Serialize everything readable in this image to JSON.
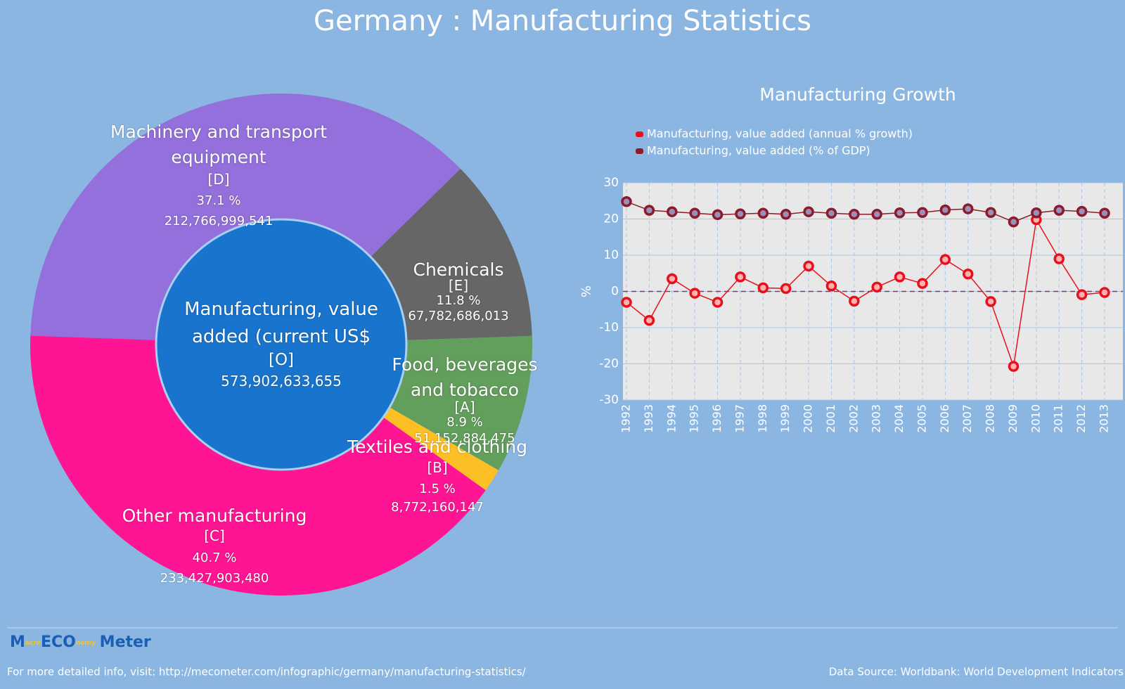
{
  "title": "Germany : Manufacturing Statistics",
  "chart_data": [
    {
      "type": "donut",
      "categories": [
        "Machinery and transport equipment",
        "Chemicals",
        "Food, beverages and tobacco",
        "Textiles and clothing",
        "Other manufacturing"
      ],
      "codes": [
        "[D]",
        "[E]",
        "[A]",
        "[B]",
        "[C]"
      ],
      "values": [
        37.1,
        11.8,
        8.9,
        1.5,
        40.7
      ],
      "value_labels": [
        "37.1 %",
        "11.8 %",
        "8.9 %",
        "1.5 %",
        "40.7 %"
      ],
      "amounts": [
        212766999541,
        67782686013,
        51152884475,
        8772160147,
        233427903480
      ],
      "amount_labels": [
        "212,766,999,541",
        "67,782,686,013",
        "51,152,884,475",
        "8,772,160,147",
        "233,427,903,480"
      ],
      "colors": [
        "#9370db",
        "#666666",
        "#629e5c",
        "#fcbf24",
        "#ff1493"
      ],
      "center": {
        "label": "Manufacturing, value added (current US$",
        "code": "[O]",
        "amount": 573902633655,
        "amount_label": "573,902,633,655",
        "color": "#1874cd"
      }
    },
    {
      "type": "line",
      "title": "Manufacturing Growth",
      "y_label": "%",
      "categories": [
        "1992",
        "1993",
        "1994",
        "1995",
        "1996",
        "1997",
        "1998",
        "1999",
        "2000",
        "2001",
        "2002",
        "2003",
        "2004",
        "2005",
        "2006",
        "2007",
        "2008",
        "2009",
        "2010",
        "2011",
        "2012",
        "2013"
      ],
      "series": [
        {
          "name": "Manufacturing, value added (annual % growth)",
          "color": "#e8101c",
          "values": [
            -3,
            -8,
            3.5,
            -0.5,
            -3,
            4,
            1,
            0.8,
            7,
            1.5,
            -2.7,
            1.2,
            4,
            2.2,
            8.8,
            4.8,
            -2.8,
            -20.7,
            19.8,
            9,
            -0.9,
            -0.3
          ]
        },
        {
          "name": "Manufacturing, value added (% of GDP)",
          "color": "#8b1a2a",
          "values": [
            24.8,
            22.4,
            22,
            21.6,
            21.2,
            21.4,
            21.6,
            21.3,
            22,
            21.6,
            21.3,
            21.3,
            21.7,
            21.8,
            22.5,
            22.8,
            21.8,
            19.2,
            21.7,
            22.4,
            22.1,
            21.6
          ]
        }
      ],
      "ylim": [
        -30,
        30
      ],
      "yticks": [
        -30,
        -20,
        -10,
        0,
        10,
        20,
        30
      ],
      "grid": true
    }
  ],
  "footer": {
    "logo": [
      "M",
      "acro",
      "ECO",
      "nomy",
      "Meter"
    ],
    "link": "For more detailed info, visit: http://mecometer.com/infographic/germany/manufacturing-statistics/",
    "source": "Data Source: Worldbank: World Development Indicators"
  }
}
